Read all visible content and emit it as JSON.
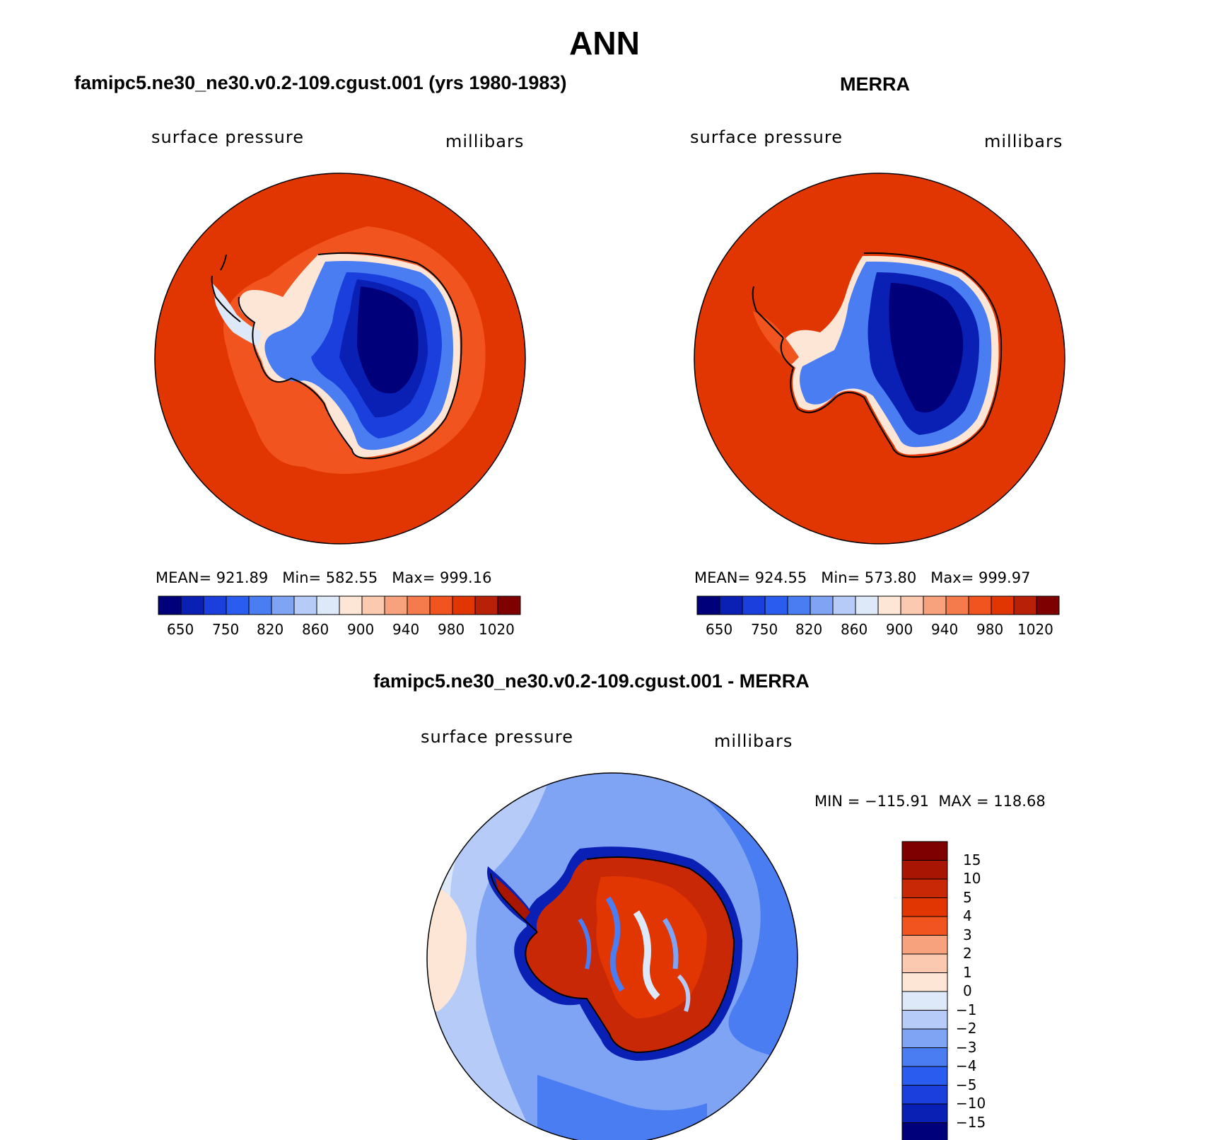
{
  "figure": {
    "title": "ANN"
  },
  "panels": [
    {
      "subtitle": "famipc5.ne30_ne30.v0.2-109.cgust.001 (yrs 1980-1983)",
      "var_label": "surface pressure",
      "units": "millibars",
      "stats": "MEAN= 921.89   Min= 582.55   Max= 999.16",
      "colorbar_ticks": [
        "650",
        "750",
        "820",
        "860",
        "900",
        "940",
        "980",
        "1020"
      ]
    },
    {
      "subtitle": "MERRA",
      "var_label": "surface pressure",
      "units": "millibars",
      "stats": "MEAN= 924.55   Min= 573.80   Max= 999.97",
      "colorbar_ticks": [
        "650",
        "750",
        "820",
        "860",
        "900",
        "940",
        "980",
        "1020"
      ]
    },
    {
      "subtitle": "famipc5.ne30_ne30.v0.2-109.cgust.001 - MERRA",
      "var_label": "surface pressure",
      "units": "millibars",
      "stats": "MIN = −115.91  MAX = 118.68",
      "colorbar_ticks": [
        "15",
        "10",
        "5",
        "4",
        "3",
        "2",
        "1",
        "0",
        "−1",
        "−2",
        "−3",
        "−4",
        "−5",
        "−10",
        "−15"
      ]
    }
  ],
  "colors": {
    "abs_palette": [
      "#00007a",
      "#0a1fb4",
      "#1a3fdc",
      "#2b5cf0",
      "#4a7df2",
      "#80a4f4",
      "#b6cbf7",
      "#dde8f8",
      "#fde6d6",
      "#fbc8b0",
      "#f7a17d",
      "#f57a4c",
      "#f2541f",
      "#e13502",
      "#b82008",
      "#7f0000"
    ],
    "diff_palette": [
      "#7f0000",
      "#a81502",
      "#c82805",
      "#e13502",
      "#f2541f",
      "#f7a17d",
      "#fbc8b0",
      "#fde6d6",
      "#dde8f8",
      "#b6cbf7",
      "#80a4f4",
      "#4a7df2",
      "#2b5cf0",
      "#1a3fdc",
      "#0a1fb4",
      "#00007a"
    ]
  }
}
